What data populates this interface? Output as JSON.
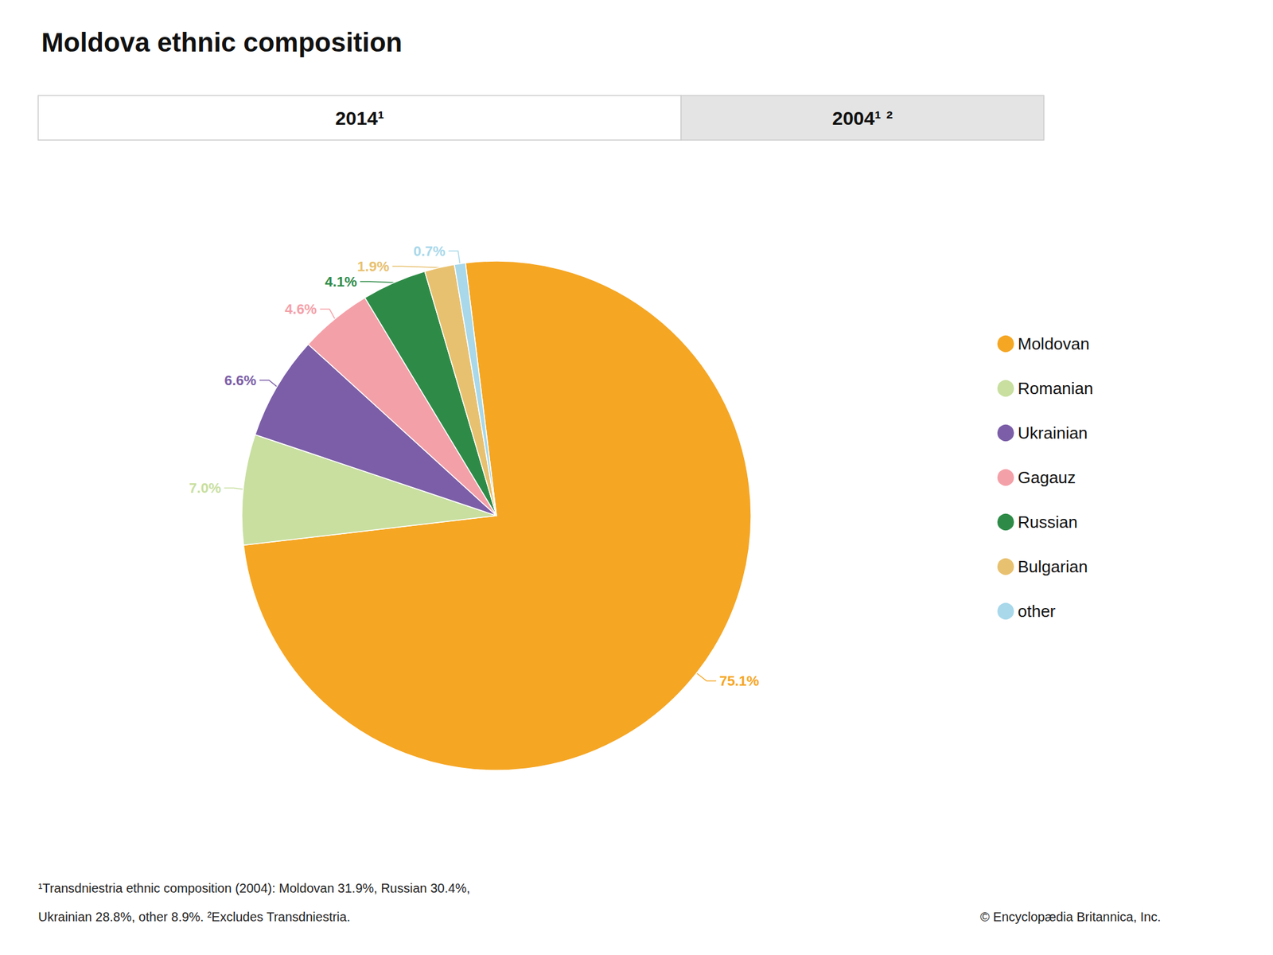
{
  "chart_data": {
    "type": "pie",
    "title": "Moldova ethnic composition",
    "categories": [
      "Moldovan",
      "Romanian",
      "Ukrainian",
      "Gagauz",
      "Russian",
      "Bulgarian",
      "other"
    ],
    "values": [
      75.1,
      7.0,
      6.6,
      4.6,
      4.1,
      1.9,
      0.7
    ],
    "value_labels": [
      "75.1%",
      "7.0%",
      "6.6%",
      "4.6%",
      "4.1%",
      "1.9%",
      "0.7%"
    ],
    "colors": [
      "#F5A623",
      "#C8DFA0",
      "#7B5EA7",
      "#F4A0A8",
      "#2E8B47",
      "#E8C170",
      "#A8D8EA"
    ],
    "data_labels": true,
    "legend": "right",
    "annotations": [
      "2014¹",
      "2004¹ ²",
      "¹Transdniestria ethnic composition (2004): Moldovan 31.9%, Russian 30.4%,",
      "Ukrainian 28.8%, other 8.9%. ²Excludes Transdniestria.",
      "© Encyclopædia Britannica, Inc."
    ]
  }
}
